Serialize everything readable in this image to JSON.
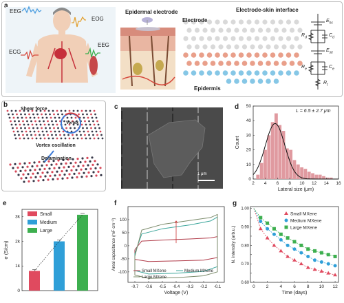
{
  "panel_a": {
    "letter": "a",
    "body_labels": {
      "eeg1": "EEG",
      "eog": "EOG",
      "ecg": "ECG",
      "eeg2": "EEG"
    },
    "epidermal_electrode": "Epidermal electrode",
    "interface_title": "Electrode-skin interface",
    "electrode": "Electrode",
    "epidermis": "Epidermis",
    "circuit": {
      "ehc": "E",
      "ehc_sub": "hc",
      "rd": "R",
      "rd_sub": "d",
      "cd": "C",
      "cd_sub": "d",
      "ese": "E",
      "ese_sub": "se",
      "re": "R",
      "re_sub": "e",
      "ce": "C",
      "ce_sub": "e",
      "rt": "R",
      "rt_sub": "t"
    }
  },
  "panel_b": {
    "letter": "b",
    "shear": "Shear force",
    "vortex": "Vortex",
    "oscillation": "Vortex oscillation",
    "delamination": "Delamination"
  },
  "panel_c": {
    "letter": "c",
    "scale": "1 μm"
  },
  "panel_d": {
    "letter": "d",
    "annotation": "L = 6.5 ± 2.7 μm"
  },
  "panel_e": {
    "letter": "e"
  },
  "panel_f": {
    "letter": "f"
  },
  "panel_g": {
    "letter": "g"
  },
  "chart_data": [
    {
      "id": "d",
      "type": "bar",
      "xlabel": "Lateral size (μm)",
      "ylabel": "Count",
      "x_ticks": [
        2,
        4,
        6,
        8,
        10,
        12,
        14,
        16
      ],
      "y_ticks": [
        0,
        10,
        20,
        30,
        40,
        50
      ],
      "xlim": [
        2,
        16
      ],
      "ylim": [
        0,
        50
      ],
      "bin_width": 0.6,
      "bins": [
        {
          "x": 2.8,
          "count": 3
        },
        {
          "x": 3.4,
          "count": 11
        },
        {
          "x": 4.0,
          "count": 20
        },
        {
          "x": 4.6,
          "count": 30
        },
        {
          "x": 5.2,
          "count": 39
        },
        {
          "x": 5.8,
          "count": 45
        },
        {
          "x": 6.4,
          "count": 37
        },
        {
          "x": 7.0,
          "count": 33
        },
        {
          "x": 7.6,
          "count": 21
        },
        {
          "x": 8.2,
          "count": 20
        },
        {
          "x": 8.8,
          "count": 13
        },
        {
          "x": 9.4,
          "count": 10
        },
        {
          "x": 10.0,
          "count": 8
        },
        {
          "x": 10.6,
          "count": 7
        },
        {
          "x": 11.2,
          "count": 5
        },
        {
          "x": 11.8,
          "count": 4
        },
        {
          "x": 12.4,
          "count": 3
        },
        {
          "x": 13.0,
          "count": 3
        },
        {
          "x": 13.6,
          "count": 2
        },
        {
          "x": 14.2,
          "count": 1
        },
        {
          "x": 14.8,
          "count": 1
        }
      ],
      "fit": {
        "peak_x": 5.6,
        "peak_y": 38,
        "sigma": 1.6
      }
    },
    {
      "id": "e",
      "type": "bar",
      "ylabel": "σ (S/cm)",
      "y_ticks": [
        0,
        1000,
        2000,
        3000
      ],
      "y_tick_labels": [
        "0",
        "1k",
        "2k",
        "3k"
      ],
      "ylim": [
        0,
        3300
      ],
      "series": [
        {
          "name": "Small",
          "value": 800,
          "color": "#e04a5f"
        },
        {
          "name": "Medium",
          "value": 2000,
          "color": "#2f9fd8"
        },
        {
          "name": "Large",
          "value": 3080,
          "color": "#3daf4f"
        }
      ]
    },
    {
      "id": "f",
      "type": "line",
      "xlabel": "Voltage (V)",
      "ylabel": "Areal capacitance (mF cm⁻²)",
      "x_ticks": [
        -0.7,
        -0.6,
        -0.5,
        -0.4,
        -0.3,
        -0.2,
        -0.1
      ],
      "y_ticks": [
        -100,
        -50,
        0,
        50,
        100
      ],
      "xlim": [
        -0.75,
        -0.05
      ],
      "ylim": [
        -140,
        150
      ],
      "series": [
        {
          "name": "Small MXene",
          "color": "#b03a48",
          "upper": [
            [
              -0.7,
              -15
            ],
            [
              -0.65,
              18
            ],
            [
              -0.5,
              22
            ],
            [
              -0.3,
              26
            ],
            [
              -0.15,
              30
            ],
            [
              -0.1,
              35
            ]
          ],
          "lower": [
            [
              -0.1,
              -45
            ],
            [
              -0.2,
              -55
            ],
            [
              -0.4,
              -58
            ],
            [
              -0.6,
              -60
            ],
            [
              -0.7,
              -52
            ]
          ]
        },
        {
          "name": "Medium MXene",
          "color": "#3aa59a",
          "upper": [
            [
              -0.7,
              -30
            ],
            [
              -0.65,
              45
            ],
            [
              -0.5,
              65
            ],
            [
              -0.3,
              80
            ],
            [
              -0.15,
              95
            ],
            [
              -0.1,
              110
            ]
          ],
          "lower": [
            [
              -0.1,
              -80
            ],
            [
              -0.2,
              -98
            ],
            [
              -0.4,
              -105
            ],
            [
              -0.6,
              -108
            ],
            [
              -0.7,
              -95
            ]
          ]
        },
        {
          "name": "Large MXene",
          "color": "#7a8a6a",
          "upper": [
            [
              -0.7,
              -40
            ],
            [
              -0.65,
              60
            ],
            [
              -0.5,
              82
            ],
            [
              -0.3,
              97
            ],
            [
              -0.15,
              108
            ],
            [
              -0.1,
              120
            ]
          ],
          "lower": [
            [
              -0.1,
              -100
            ],
            [
              -0.2,
              -115
            ],
            [
              -0.4,
              -122
            ],
            [
              -0.6,
              -125
            ],
            [
              -0.7,
              -112
            ]
          ]
        }
      ]
    },
    {
      "id": "g",
      "type": "scatter",
      "xlabel": "Time (days)",
      "ylabel": "N. intensity (arb.u.)",
      "x_ticks": [
        0,
        2,
        4,
        6,
        8,
        10,
        12
      ],
      "y_ticks": [
        0.6,
        0.65,
        0.7,
        0.75,
        0.8,
        0.85,
        0.9,
        0.95,
        1.0
      ],
      "y_tick_labels": [
        "0.60",
        "",
        "0.70",
        "",
        "0.80",
        "",
        "0.90",
        "",
        "1.00"
      ],
      "xlim": [
        -0.5,
        12.5
      ],
      "ylim": [
        0.6,
        1.01
      ],
      "series": [
        {
          "name": "Small MXene",
          "color": "#e04a5f",
          "marker": "triangle",
          "x": [
            1,
            2,
            3,
            4,
            5,
            6,
            7,
            8,
            9,
            10,
            11,
            12
          ],
          "y": [
            0.89,
            0.84,
            0.8,
            0.77,
            0.74,
            0.72,
            0.7,
            0.68,
            0.67,
            0.66,
            0.65,
            0.64
          ]
        },
        {
          "name": "Medium MXene",
          "color": "#2f9fd8",
          "marker": "circle",
          "x": [
            1,
            2,
            3,
            4,
            5,
            6,
            7,
            8,
            9,
            10,
            11,
            12
          ],
          "y": [
            0.93,
            0.89,
            0.86,
            0.83,
            0.8,
            0.78,
            0.76,
            0.74,
            0.72,
            0.71,
            0.7,
            0.69
          ]
        },
        {
          "name": "Large MXene",
          "color": "#3daf4f",
          "marker": "square",
          "x": [
            1,
            2,
            3,
            4,
            5,
            6,
            7,
            8,
            9,
            10,
            11,
            12
          ],
          "y": [
            0.95,
            0.92,
            0.89,
            0.86,
            0.84,
            0.82,
            0.8,
            0.78,
            0.77,
            0.76,
            0.75,
            0.74
          ]
        }
      ]
    }
  ]
}
